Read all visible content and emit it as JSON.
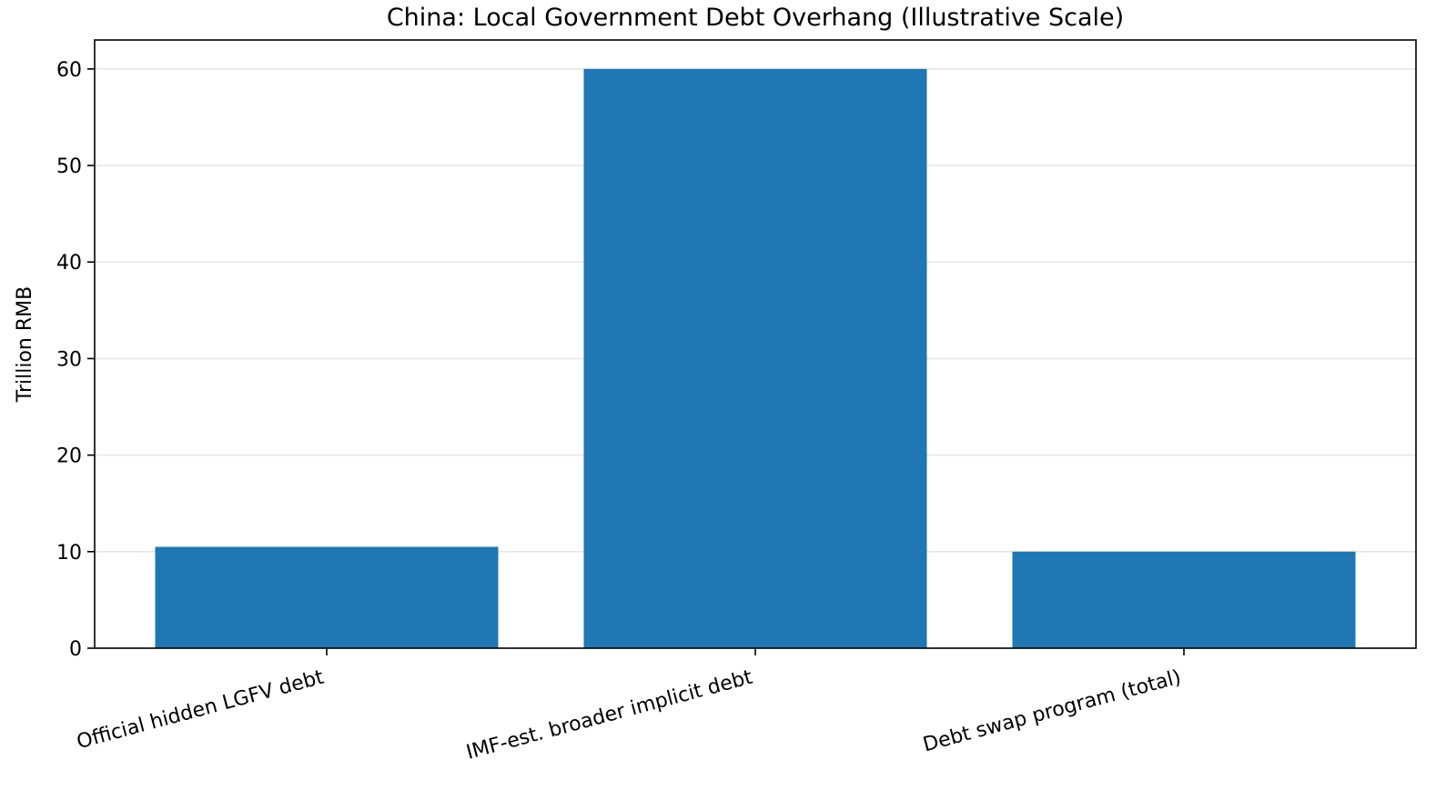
{
  "chart_data": {
    "type": "bar",
    "title": "China: Local Government Debt Overhang (Illustrative Scale)",
    "xlabel": "",
    "ylabel": "Trillion RMB",
    "categories": [
      "Official hidden LGFV debt",
      "IMF-est. broader implicit debt",
      "Debt swap program (total)"
    ],
    "values": [
      10.5,
      60,
      10
    ],
    "ylim": [
      0,
      63
    ],
    "yticks": [
      0,
      10,
      20,
      30,
      40,
      50,
      60
    ],
    "grid": "y",
    "legend": "none",
    "bar_color": "#1f77b4"
  }
}
